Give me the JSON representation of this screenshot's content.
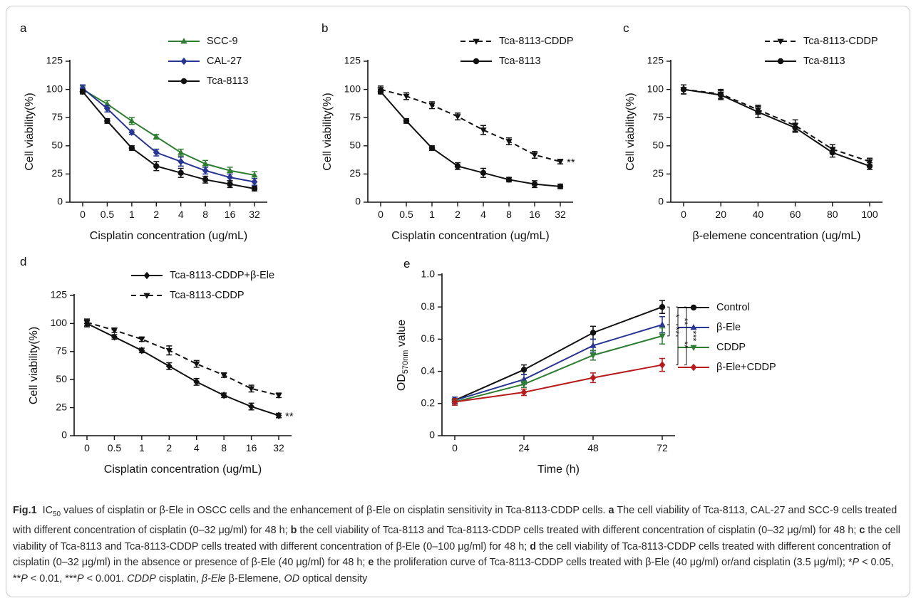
{
  "chart_data": [
    {
      "panel": "a",
      "type": "line",
      "categories": [
        "0",
        "0.5",
        "1",
        "2",
        "4",
        "8",
        "16",
        "32"
      ],
      "xlabel": "Cisplatin concentration (ug/mL)",
      "ylabel": "Cell viability(%)",
      "ylim": [
        0,
        125
      ],
      "yticks": [
        "0",
        "25",
        "50",
        "75",
        "100",
        "125"
      ],
      "legend_position": "top-right",
      "series": [
        {
          "name": "SCC-9",
          "color": "#2e7d32",
          "marker": "triangle-up",
          "dash": "solid",
          "values": [
            100,
            87,
            72,
            58,
            44,
            34,
            28,
            24
          ],
          "errors": [
            3,
            3,
            3,
            2,
            3,
            3,
            3,
            3
          ]
        },
        {
          "name": "CAL-27",
          "color": "#283593",
          "marker": "diamond",
          "dash": "solid",
          "values": [
            101,
            83,
            62,
            44,
            36,
            28,
            22,
            18
          ],
          "errors": [
            3,
            3,
            2,
            3,
            4,
            3,
            3,
            3
          ]
        },
        {
          "name": "Tca-8113",
          "color": "#111111",
          "marker": "circle",
          "dash": "solid",
          "values": [
            98,
            72,
            48,
            32,
            26,
            20,
            16,
            12
          ],
          "errors": [
            2,
            2,
            2,
            4,
            4,
            3,
            3,
            2
          ]
        }
      ]
    },
    {
      "panel": "b",
      "type": "line",
      "categories": [
        "0",
        "0.5",
        "1",
        "2",
        "4",
        "8",
        "16",
        "32"
      ],
      "xlabel": "Cisplatin concentration (ug/mL)",
      "ylabel": "Cell viability(%)",
      "ylim": [
        0,
        125
      ],
      "yticks": [
        "0",
        "25",
        "50",
        "75",
        "100",
        "125"
      ],
      "legend_position": "top-right",
      "annotation": "**",
      "series": [
        {
          "name": "Tca-8113-CDDP",
          "color": "#111111",
          "marker": "triangle-down",
          "dash": "dashed",
          "values": [
            100,
            94,
            86,
            76,
            64,
            54,
            42,
            36
          ],
          "errors": [
            3,
            3,
            3,
            3,
            4,
            3,
            3,
            2
          ]
        },
        {
          "name": "Tca-8113",
          "color": "#111111",
          "marker": "circle",
          "dash": "solid",
          "values": [
            98,
            72,
            48,
            32,
            26,
            20,
            16,
            14
          ],
          "errors": [
            2,
            2,
            2,
            3,
            4,
            2,
            3,
            2
          ]
        }
      ]
    },
    {
      "panel": "c",
      "type": "line",
      "categories": [
        "0",
        "20",
        "40",
        "60",
        "80",
        "100"
      ],
      "xlabel": "β-elemene concentration (ug/mL)",
      "ylabel": "Cell viability(%)",
      "ylim": [
        0,
        125
      ],
      "yticks": [
        "0",
        "25",
        "50",
        "75",
        "100",
        "125"
      ],
      "legend_position": "top-right",
      "series": [
        {
          "name": "Tca-8113-CDDP",
          "color": "#111111",
          "marker": "triangle-down",
          "dash": "dashed",
          "values": [
            100,
            96,
            82,
            68,
            47,
            36
          ],
          "errors": [
            4,
            4,
            4,
            5,
            4,
            3
          ]
        },
        {
          "name": "Tca-8113",
          "color": "#111111",
          "marker": "circle",
          "dash": "solid",
          "values": [
            100,
            95,
            80,
            66,
            44,
            32
          ],
          "errors": [
            4,
            4,
            5,
            4,
            4,
            3
          ]
        }
      ]
    },
    {
      "panel": "d",
      "type": "line",
      "categories": [
        "0",
        "0.5",
        "1",
        "2",
        "4",
        "8",
        "16",
        "32"
      ],
      "xlabel": "Cisplatin concentration (ug/mL)",
      "ylabel": "Cell viability(%)",
      "ylim": [
        0,
        125
      ],
      "yticks": [
        "0",
        "25",
        "50",
        "75",
        "100",
        "125"
      ],
      "legend_position": "top-right",
      "annotation": "**",
      "series": [
        {
          "name": "Tca-8113-CDDP+β-Ele",
          "color": "#111111",
          "marker": "diamond",
          "dash": "solid",
          "values": [
            100,
            88,
            76,
            62,
            48,
            36,
            26,
            18
          ],
          "errors": [
            3,
            2,
            2,
            3,
            3,
            2,
            3,
            2
          ]
        },
        {
          "name": "Tca-8113-CDDP",
          "color": "#111111",
          "marker": "triangle-down",
          "dash": "dashed",
          "values": [
            101,
            94,
            86,
            76,
            64,
            54,
            42,
            36
          ],
          "errors": [
            3,
            2,
            2,
            4,
            3,
            2,
            3,
            2
          ]
        }
      ]
    },
    {
      "panel": "e",
      "type": "line",
      "categories": [
        "0",
        "24",
        "48",
        "72"
      ],
      "xlabel": "Time (h)",
      "ylabel": "OD570nm value",
      "ylabel_main": "OD",
      "ylabel_sub": "570nm",
      "ylabel_tail": " value",
      "ylim": [
        0,
        1.0
      ],
      "yticks": [
        "0",
        "0.2",
        "0.4",
        "0.6",
        "0.8",
        "1.0"
      ],
      "legend_position": "right",
      "significance": [
        "*",
        "**",
        "**",
        "**",
        "***"
      ],
      "series": [
        {
          "name": "Control",
          "color": "#111111",
          "marker": "circle",
          "dash": "solid",
          "values": [
            0.22,
            0.41,
            0.64,
            0.8
          ],
          "errors": [
            0.02,
            0.03,
            0.04,
            0.04
          ]
        },
        {
          "name": "β-Ele",
          "color": "#283593",
          "marker": "triangle-up",
          "dash": "solid",
          "values": [
            0.22,
            0.35,
            0.56,
            0.69
          ],
          "errors": [
            0.02,
            0.03,
            0.04,
            0.05
          ]
        },
        {
          "name": "CDDP",
          "color": "#2e7d32",
          "marker": "triangle-down",
          "dash": "solid",
          "values": [
            0.21,
            0.32,
            0.5,
            0.62
          ],
          "errors": [
            0.02,
            0.02,
            0.03,
            0.05
          ]
        },
        {
          "name": "β-Ele+CDDP",
          "color": "#b71c1c",
          "marker": "diamond",
          "dash": "solid",
          "values": [
            0.21,
            0.27,
            0.36,
            0.44
          ],
          "errors": [
            0.02,
            0.02,
            0.03,
            0.04
          ]
        }
      ]
    }
  ],
  "caption": {
    "fig_label": "Fig.1",
    "ic": "IC",
    "ic_sub": "50",
    "title_rest": " values of cisplatin or β-Ele in OSCC cells and the enhancement of β-Ele on cisplatin sensitivity in Tca-8113-CDDP cells.",
    "a_label": "a",
    "a_text": "The cell viability of Tca-8113, CAL-27 and SCC-9 cells treated with different concentration of cisplatin (0–32 μg/ml) for 48 h;",
    "b_label": "b",
    "b_text": "the cell viability of Tca-8113 and Tca-8113-CDDP cells treated with different concentration of cisplatin (0–32 μg/ml) for 48 h;",
    "c_label": "c",
    "c_text": "the cell viability of Tca-8113 and Tca-8113-CDDP cells treated with different concentration of β-Ele (0–100 μg/ml) for 48 h;",
    "d_label": "d",
    "d_text": "the cell viability of Tca-8113-CDDP cells treated with different concentration of cisplatin (0–32 μg/ml) in the absence or presence of β-Ele (40 μg/ml) for 48 h;",
    "e_label": "e",
    "e_text": "the proliferation curve of Tca-8113-CDDP cells treated with β-Ele (40 μg/ml) or/and cisplatin (3.5 μg/ml); ",
    "p1_stars": "*",
    "p1_p": "P",
    "p1_val": " < 0.05, ",
    "p2_stars": "**",
    "p2_p": "P",
    "p2_val": " < 0.01, ",
    "p3_stars": "***",
    "p3_p": "P",
    "p3_val": " < 0.001. ",
    "abbr1": "CDDP",
    "abbr1_def": " cisplatin, ",
    "abbr2": "β-Ele",
    "abbr2_def": " β-Elemene, ",
    "abbr3": "OD",
    "abbr3_def": " optical density"
  }
}
